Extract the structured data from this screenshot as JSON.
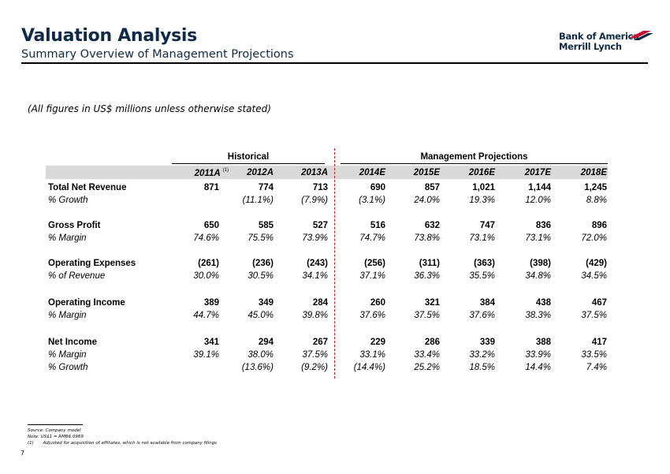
{
  "header": {
    "title": "Valuation Analysis",
    "subtitle": "Summary Overview of Management Projections",
    "logo_line1": "Bank of America",
    "logo_line2": "Merrill Lynch"
  },
  "note": "(All figures in US$ millions unless otherwise stated)",
  "table": {
    "groups": {
      "historical": "Historical",
      "projections": "Management Projections"
    },
    "years": [
      "2011A",
      "2012A",
      "2013A",
      "2014E",
      "2015E",
      "2016E",
      "2017E",
      "2018E"
    ],
    "footnote_marker": "(1)",
    "rows": [
      {
        "label": "Total Net Revenue",
        "values": [
          "871",
          "774",
          "713",
          "690",
          "857",
          "1,021",
          "1,144",
          "1,245"
        ]
      },
      {
        "label": "% Growth",
        "values": [
          "",
          "(11.1%)",
          "(7.9%)",
          "(3.1%)",
          "24.0%",
          "19.3%",
          "12.0%",
          "8.8%"
        ]
      },
      {
        "label": "Gross Profit",
        "values": [
          "650",
          "585",
          "527",
          "516",
          "632",
          "747",
          "836",
          "896"
        ]
      },
      {
        "label": "% Margin",
        "values": [
          "74.6%",
          "75.5%",
          "73.9%",
          "74.7%",
          "73.8%",
          "73.1%",
          "73.1%",
          "72.0%"
        ]
      },
      {
        "label": "Operating Expenses",
        "values": [
          "(261)",
          "(236)",
          "(243)",
          "(256)",
          "(311)",
          "(363)",
          "(398)",
          "(429)"
        ]
      },
      {
        "label": "% of Revenue",
        "values": [
          "30.0%",
          "30.5%",
          "34.1%",
          "37.1%",
          "36.3%",
          "35.5%",
          "34.8%",
          "34.5%"
        ]
      },
      {
        "label": "Operating Income",
        "values": [
          "389",
          "349",
          "284",
          "260",
          "321",
          "384",
          "438",
          "467"
        ]
      },
      {
        "label": "% Margin",
        "values": [
          "44.7%",
          "45.0%",
          "39.8%",
          "37.6%",
          "37.5%",
          "37.6%",
          "38.3%",
          "37.5%"
        ]
      },
      {
        "label": "Net Income",
        "values": [
          "341",
          "294",
          "267",
          "229",
          "286",
          "339",
          "388",
          "417"
        ]
      },
      {
        "label": "% Margin",
        "values": [
          "39.1%",
          "38.0%",
          "37.5%",
          "33.1%",
          "33.4%",
          "33.2%",
          "33.9%",
          "33.5%"
        ]
      },
      {
        "label": "% Growth",
        "values": [
          "",
          "(13.6%)",
          "(9.2%)",
          "(14.4%)",
          "25.2%",
          "18.5%",
          "14.4%",
          "7.4%"
        ]
      }
    ]
  },
  "footer": {
    "source": "Source: Company model",
    "note": "Note: US$1 = RMB6.0969",
    "fn_marker": "(1)",
    "fn_text": "Adjusted for acquisition of affiliates, which is not available from company filings",
    "page": "7"
  },
  "colors": {
    "title": "#0f2a49",
    "divider": "#cc1b1b",
    "band": "#d9d9d9",
    "logo_red": "#c8102e"
  }
}
